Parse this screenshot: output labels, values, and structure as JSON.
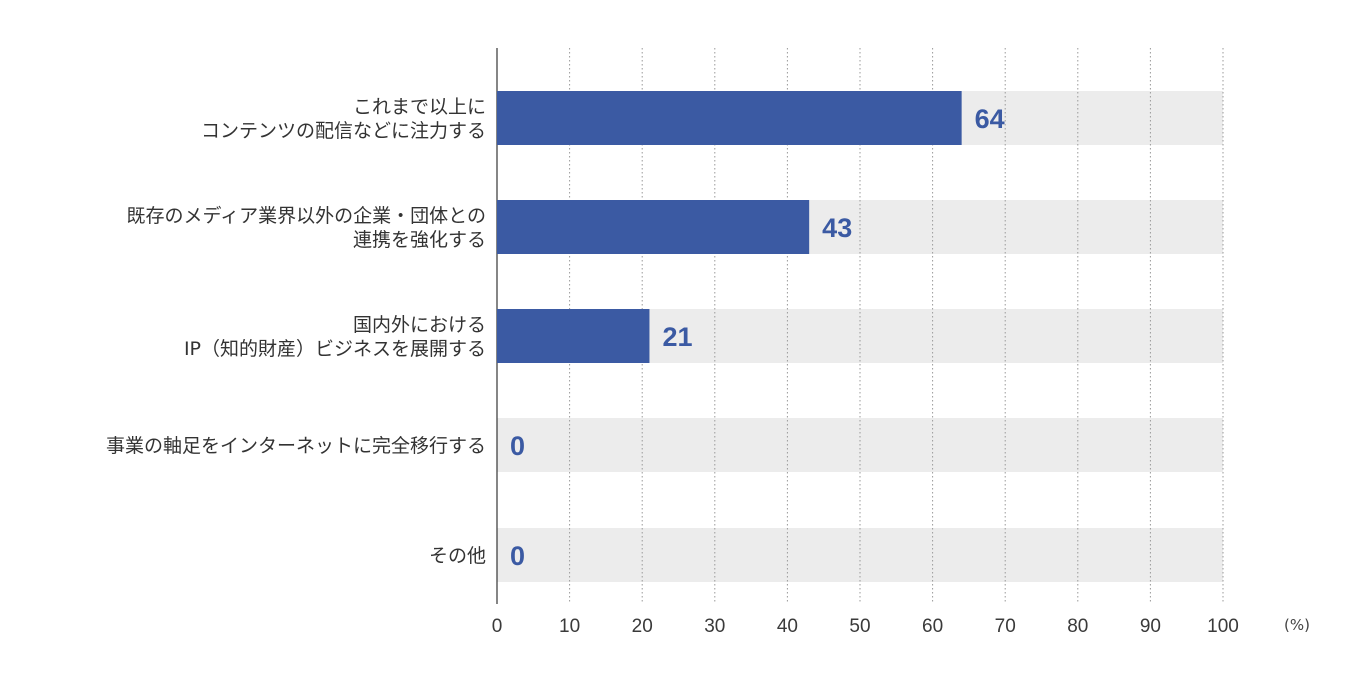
{
  "chart_data": {
    "type": "bar",
    "orientation": "horizontal",
    "categories": [
      [
        "これまで以上に",
        "コンテンツの配信などに注力する"
      ],
      [
        "既存のメディア業界以外の企業・団体との",
        "連携を強化する"
      ],
      [
        "国内外における",
        "IP（知的財産）ビジネスを展開する"
      ],
      [
        "事業の軸足をインターネットに完全移行する"
      ],
      [
        "その他"
      ]
    ],
    "values": [
      64,
      43,
      21,
      0,
      0
    ],
    "value_labels": [
      "64",
      "43",
      "21",
      "0",
      "0"
    ],
    "xlim": [
      0,
      100
    ],
    "xticks": [
      "0",
      "10",
      "20",
      "30",
      "40",
      "50",
      "60",
      "70",
      "80",
      "90",
      "100"
    ],
    "unit": "(%)",
    "grid": true,
    "colors": {
      "bar": "#3b5aa3",
      "track": "#ececec",
      "grid": "#999999",
      "value_text": "#3b5aa3"
    }
  }
}
